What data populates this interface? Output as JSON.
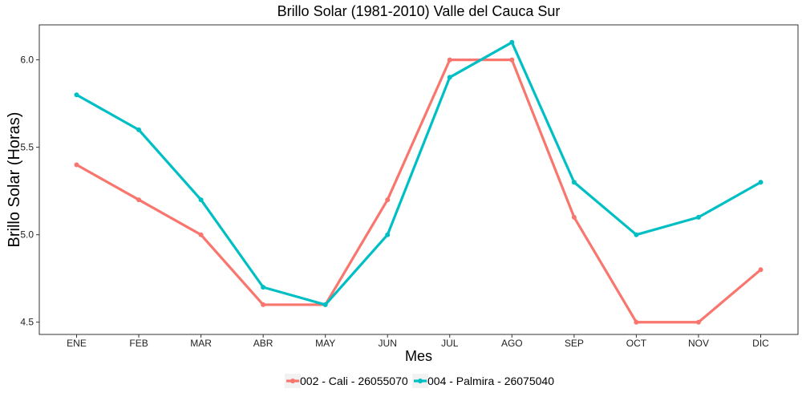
{
  "chart_data": {
    "type": "line",
    "title": "Brillo Solar (1981-2010)  Valle del Cauca Sur",
    "xlabel": "Mes",
    "ylabel": "Brillo Solar (Horas)",
    "categories": [
      "ENE",
      "FEB",
      "MAR",
      "ABR",
      "MAY",
      "JUN",
      "JUL",
      "AGO",
      "SEP",
      "OCT",
      "NOV",
      "DIC"
    ],
    "ylim": [
      4.43,
      6.2
    ],
    "yticks": [
      4.5,
      5.0,
      5.5,
      6.0
    ],
    "ytick_labels": [
      "4.5",
      "5.0",
      "5.5",
      "6.0"
    ],
    "grid": false,
    "legend_position": "bottom",
    "series": [
      {
        "name": "002 - Cali - 26055070",
        "color": "#F8766D",
        "values": [
          5.4,
          5.2,
          5.0,
          4.6,
          4.6,
          5.2,
          6.0,
          6.0,
          5.1,
          4.5,
          4.5,
          4.8
        ]
      },
      {
        "name": "004 - Palmira - 26075040",
        "color": "#00BFC4",
        "values": [
          5.8,
          5.6,
          5.2,
          4.7,
          4.6,
          5.0,
          5.9,
          6.1,
          5.3,
          5.0,
          5.1,
          5.3
        ]
      }
    ]
  }
}
